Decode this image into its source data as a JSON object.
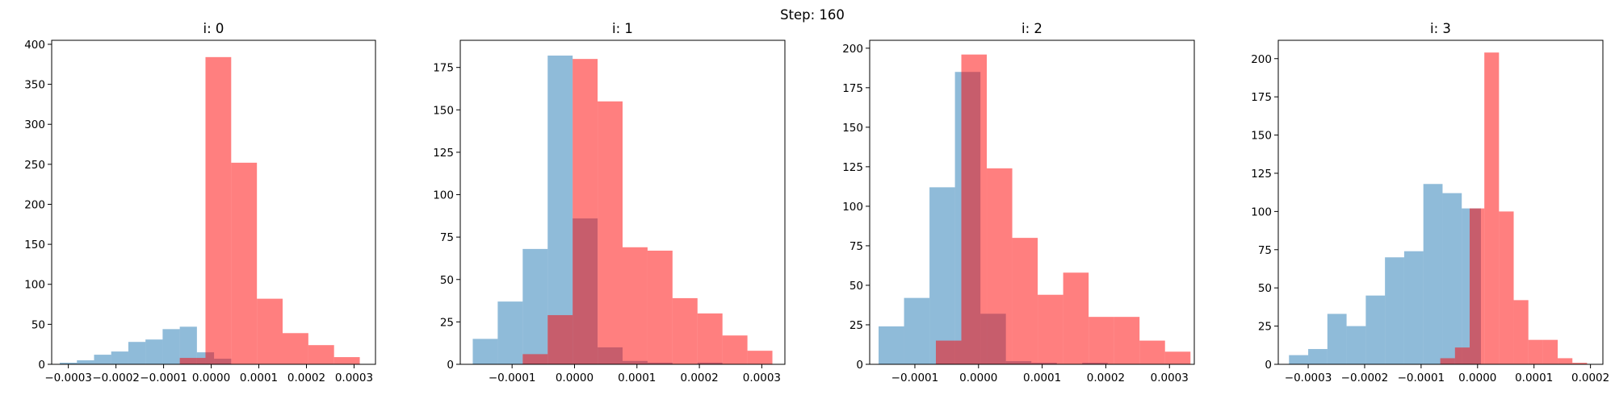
{
  "figure": {
    "suptitle": "Step: 160"
  },
  "colors": {
    "blue": "#1f77b4",
    "red": "#ff0000",
    "blue_alpha": 0.5,
    "red_alpha": 0.5
  },
  "chart_data": [
    {
      "type": "histogram",
      "title": "i: 0",
      "xlim": [
        -0.000335,
        0.000345
      ],
      "ylim": [
        0,
        405
      ],
      "xticks": [
        -0.0003,
        -0.0002,
        -0.0001,
        0.0,
        0.0001,
        0.0002,
        0.0003
      ],
      "xtick_labels": [
        "−0.0003",
        "−0.0002",
        "−0.0001",
        "0.0000",
        "0.0001",
        "0.0002",
        "0.0003"
      ],
      "yticks": [
        0,
        50,
        100,
        150,
        200,
        250,
        300,
        350,
        400
      ],
      "ytick_labels": [
        "0",
        "50",
        "100",
        "150",
        "200",
        "250",
        "300",
        "350",
        "400"
      ],
      "series": [
        {
          "color": "blue",
          "edges": [
            -0.000318,
            -0.000282,
            -0.000246,
            -0.00021,
            -0.000174,
            -0.000138,
            -0.000102,
            -6.6e-05,
            -3e-05,
            6e-06,
            4.2e-05
          ],
          "counts": [
            2,
            5,
            12,
            16,
            28,
            31,
            44,
            47,
            15,
            7
          ]
        },
        {
          "color": "red",
          "edges": [
            -6.6e-05,
            -1.2e-05,
            4.2e-05,
            9.6e-05,
            0.00015,
            0.000204,
            0.000258,
            0.000312
          ],
          "counts": [
            8,
            384,
            252,
            82,
            39,
            24,
            9
          ]
        }
      ]
    },
    {
      "type": "histogram",
      "title": "i: 1",
      "xlim": [
        -0.000183,
        0.000337
      ],
      "ylim": [
        0,
        191
      ],
      "xticks": [
        -0.0001,
        0.0,
        0.0001,
        0.0002,
        0.0003
      ],
      "xtick_labels": [
        "−0.0001",
        "0.0000",
        "0.0001",
        "0.0002",
        "0.0003"
      ],
      "yticks": [
        0,
        25,
        50,
        75,
        100,
        125,
        150,
        175
      ],
      "ytick_labels": [
        "0",
        "25",
        "50",
        "75",
        "100",
        "125",
        "150",
        "175"
      ],
      "series": [
        {
          "color": "blue",
          "edges": [
            -0.000163,
            -0.000123,
            -8.3e-05,
            -4.3e-05,
            -3e-06,
            3.7e-05,
            7.7e-05,
            0.000117,
            0.000157,
            0.000197,
            0.000237
          ],
          "counts": [
            15,
            37,
            68,
            182,
            86,
            10,
            2,
            1,
            0,
            1
          ]
        },
        {
          "color": "red",
          "edges": [
            -8.3e-05,
            -4.3e-05,
            -3e-06,
            3.7e-05,
            7.7e-05,
            0.000117,
            0.000157,
            0.000197,
            0.000237,
            0.000277,
            0.000317
          ],
          "counts": [
            6,
            29,
            180,
            155,
            69,
            67,
            39,
            30,
            17,
            8
          ]
        }
      ]
    },
    {
      "type": "histogram",
      "title": "i: 2",
      "xlim": [
        -0.000171,
        0.000339
      ],
      "ylim": [
        0,
        205
      ],
      "xticks": [
        -0.0001,
        0.0,
        0.0001,
        0.0002,
        0.0003
      ],
      "xtick_labels": [
        "−0.0001",
        "0.0000",
        "0.0001",
        "0.0002",
        "0.0003"
      ],
      "yticks": [
        0,
        25,
        50,
        75,
        100,
        125,
        150,
        175,
        200
      ],
      "ytick_labels": [
        "0",
        "25",
        "50",
        "75",
        "100",
        "125",
        "150",
        "175",
        "200"
      ],
      "series": [
        {
          "color": "blue",
          "edges": [
            -0.000157,
            -0.000117,
            -7.7e-05,
            -3.7e-05,
            3e-06,
            4.3e-05,
            8.3e-05,
            0.000123,
            0.000163,
            0.000203
          ],
          "counts": [
            24,
            42,
            112,
            185,
            32,
            2,
            1,
            0,
            1
          ]
        },
        {
          "color": "red",
          "edges": [
            -6.7e-05,
            -2.7e-05,
            1.3e-05,
            5.3e-05,
            9.3e-05,
            0.000133,
            0.000173,
            0.000213,
            0.000253,
            0.000293,
            0.000333
          ],
          "counts": [
            15,
            196,
            124,
            80,
            44,
            58,
            30,
            30,
            15,
            8
          ]
        }
      ]
    },
    {
      "type": "histogram",
      "title": "i: 3",
      "xlim": [
        -0.000353,
        0.000222
      ],
      "ylim": [
        0,
        212
      ],
      "xticks": [
        -0.0003,
        -0.0002,
        -0.0001,
        0.0,
        0.0001,
        0.0002
      ],
      "xtick_labels": [
        "−0.0003",
        "−0.0002",
        "−0.0001",
        "0.0000",
        "0.0001",
        "0.0002"
      ],
      "yticks": [
        0,
        25,
        50,
        75,
        100,
        125,
        150,
        175,
        200
      ],
      "ytick_labels": [
        "0",
        "25",
        "50",
        "75",
        "100",
        "125",
        "150",
        "175",
        "200"
      ],
      "series": [
        {
          "color": "blue",
          "edges": [
            -0.000334,
            -0.0003,
            -0.000266,
            -0.000232,
            -0.000198,
            -0.000164,
            -0.00013,
            -9.6e-05,
            -6.2e-05,
            -2.8e-05,
            6e-06
          ],
          "counts": [
            6,
            10,
            33,
            25,
            45,
            70,
            74,
            118,
            112,
            102
          ]
        },
        {
          "color": "red",
          "edges": [
            -6.6e-05,
            -4e-05,
            -1.4e-05,
            1.2e-05,
            3.8e-05,
            6.4e-05,
            9e-05,
            0.000116,
            0.000142,
            0.000168,
            0.000194
          ],
          "counts": [
            4,
            11,
            102,
            204,
            100,
            42,
            16,
            16,
            4,
            1
          ]
        }
      ]
    }
  ]
}
